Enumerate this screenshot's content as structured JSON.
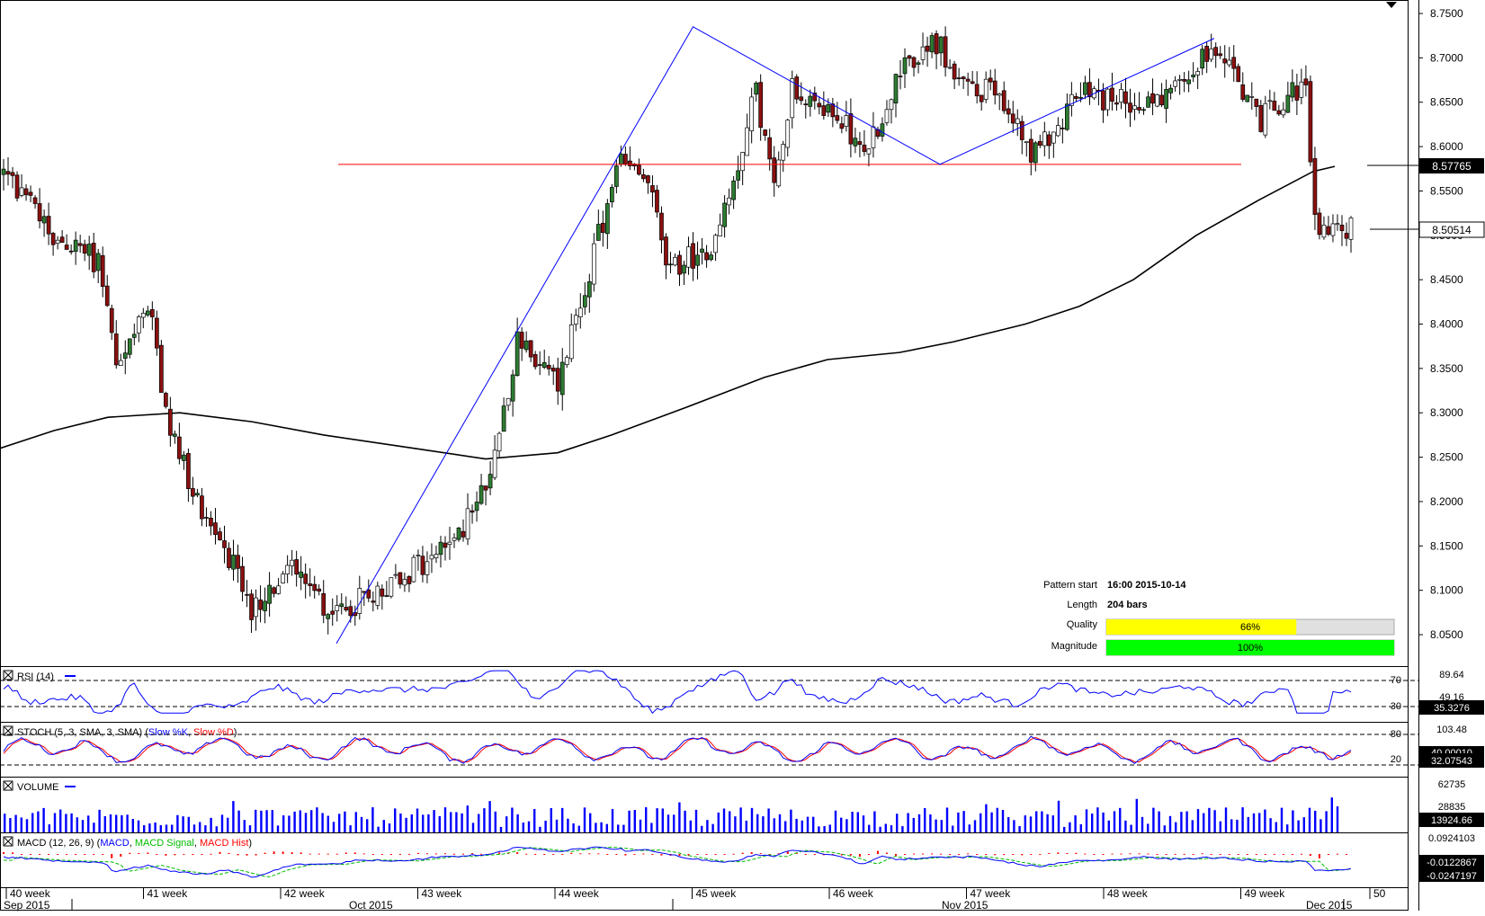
{
  "chart_data": {
    "type": "candlestick",
    "price_axis": {
      "ticks": [
        "8.7500",
        "8.7000",
        "8.6500",
        "8.6000",
        "8.5500",
        "8.5000",
        "8.4500",
        "8.4000",
        "8.3500",
        "8.3000",
        "8.2500",
        "8.2000",
        "8.1500",
        "8.1000",
        "8.0500"
      ],
      "range": [
        8.02,
        8.77
      ]
    },
    "price_labels": {
      "ma": "8.57765",
      "last": "8.50514"
    },
    "reference_levels": {
      "ma_end": 8.57765,
      "last": 8.50514,
      "horizontal_line": 8.58
    },
    "pattern_lines": {
      "zigzag": [
        {
          "x": "2015-10-14",
          "y": 8.04
        },
        {
          "x": "2015-11-02",
          "y": 8.735
        },
        {
          "x": "2015-11-13",
          "y": 8.58
        },
        {
          "x": "2015-11-27",
          "y": 8.722
        }
      ]
    },
    "pattern_info": {
      "start_label": "Pattern start",
      "start_value": "16:00 2015-10-14",
      "length_label": "Length",
      "length_value": "204 bars",
      "quality_label": "Quality",
      "quality_value": "66%",
      "quality_fraction": 0.66,
      "magnitude_label": "Magnitude",
      "magnitude_value": "100%",
      "magnitude_fraction": 1.0
    },
    "x_axis": {
      "week_labels": [
        "40 week",
        "41 week",
        "42 week",
        "43 week",
        "44 week",
        "45 week",
        "46 week",
        "47 week",
        "48 week",
        "49 week",
        "50"
      ],
      "month_labels": [
        "Sep 2015",
        "Oct 2015",
        "Nov 2015",
        "Dec 2015"
      ]
    },
    "indicators": {
      "rsi": {
        "title": "RSI (14)",
        "levels": [
          "70",
          "30"
        ],
        "axis_top": "89.64",
        "axis_mid": "49.16",
        "last": "35.3276"
      },
      "stoch": {
        "title": "STOCH (5, 3, SMA, 3, SMA)",
        "series": [
          {
            "name": "Slow %K",
            "color": "#0000ff"
          },
          {
            "name": "Slow %D",
            "color": "#ff0000"
          }
        ],
        "levels": [
          "80",
          "20"
        ],
        "axis_top": "103.48",
        "last_a": "40.00010",
        "last_b": "32.07543"
      },
      "volume": {
        "title": "VOLUME",
        "axis_top": "62735",
        "axis_mid": "28835",
        "last": "13924.66"
      },
      "macd": {
        "title": "MACD (12, 26, 9)",
        "series": [
          {
            "name": "MACD",
            "color": "#0000ff"
          },
          {
            "name": "MACD Signal",
            "color": "#00bb00"
          },
          {
            "name": "MACD Hist",
            "color": "#ff0000"
          }
        ],
        "axis_top": "0.0924103",
        "last": "-0.0122867",
        "last_b": "-0.0247197"
      }
    },
    "colors": {
      "up": "#ffffff",
      "down": "#8b1010",
      "up_body_alt": "#2e7d32",
      "ma": "#000000",
      "pattern": "#0000ff",
      "level": "#ff0000",
      "quality": "#ffff00",
      "magnitude": "#00ff00"
    }
  }
}
